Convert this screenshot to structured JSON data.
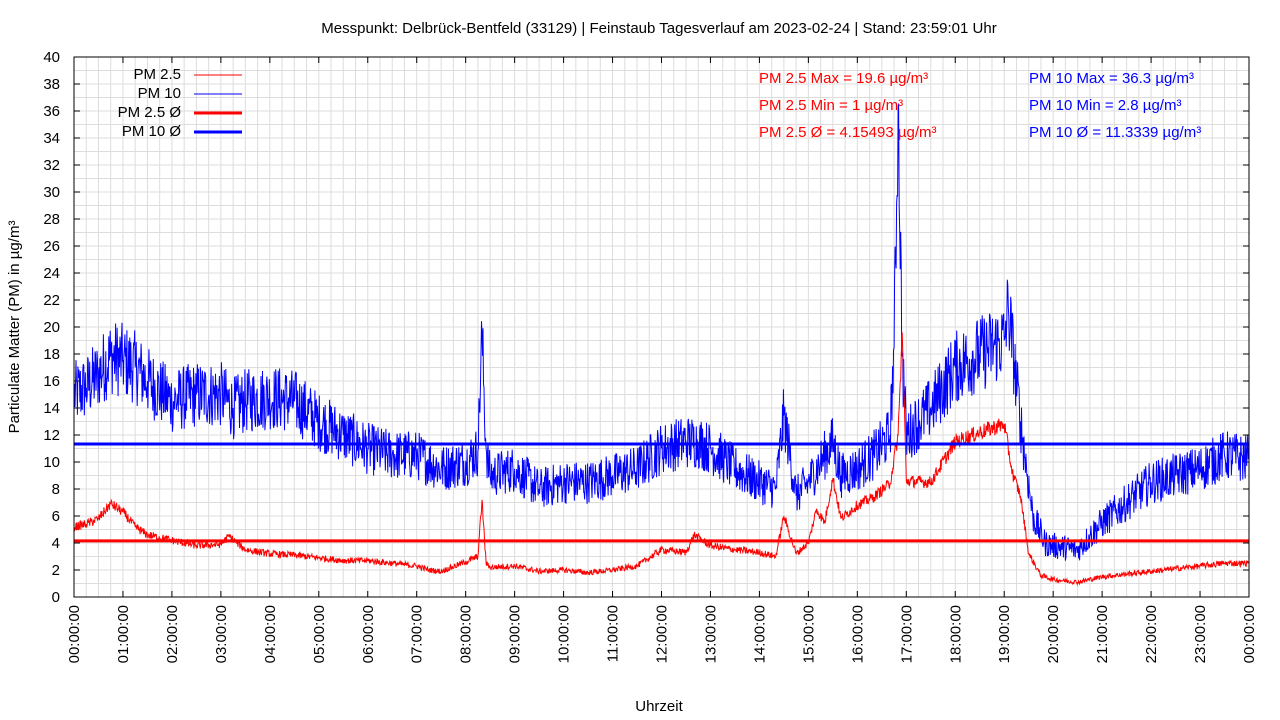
{
  "chart_data": {
    "type": "line",
    "title": "Messpunkt: Delbrück-Bentfeld (33129) | Feinstaub Tagesverlauf am 2023-02-24 | Stand: 23:59:01 Uhr",
    "xlabel": "Uhrzeit",
    "ylabel": "Particulate Matter (PM) in µg/m³",
    "ylim": [
      0,
      40
    ],
    "xlim": [
      "00:00:00",
      "24:00:00"
    ],
    "grid": true,
    "legend_position": "top-left",
    "y_ticks": [
      "0",
      "2",
      "4",
      "6",
      "8",
      "10",
      "12",
      "14",
      "16",
      "18",
      "20",
      "22",
      "24",
      "26",
      "28",
      "30",
      "32",
      "34",
      "36",
      "38",
      "40"
    ],
    "x_ticks": [
      "00:00:00",
      "01:00:00",
      "02:00:00",
      "03:00:00",
      "04:00:00",
      "05:00:00",
      "06:00:00",
      "07:00:00",
      "08:00:00",
      "09:00:00",
      "10:00:00",
      "11:00:00",
      "12:00:00",
      "13:00:00",
      "14:00:00",
      "15:00:00",
      "16:00:00",
      "17:00:00",
      "18:00:00",
      "19:00:00",
      "20:00:00",
      "21:00:00",
      "22:00:00",
      "23:00:00",
      "00:00:00"
    ],
    "series": [
      {
        "name": "PM 2.5",
        "color": "#ff0000",
        "x": [
          "00:00",
          "00:15",
          "00:30",
          "00:45",
          "01:00",
          "01:15",
          "01:30",
          "02:00",
          "02:30",
          "03:00",
          "03:10",
          "03:30",
          "04:00",
          "04:30",
          "05:00",
          "05:30",
          "06:00",
          "06:30",
          "07:00",
          "07:15",
          "07:30",
          "08:00",
          "08:15",
          "08:20",
          "08:25",
          "08:30",
          "09:00",
          "09:30",
          "10:00",
          "10:30",
          "11:00",
          "11:30",
          "12:00",
          "12:30",
          "12:40",
          "13:00",
          "13:30",
          "14:00",
          "14:20",
          "14:30",
          "14:45",
          "15:00",
          "15:10",
          "15:20",
          "15:30",
          "15:40",
          "16:00",
          "16:20",
          "16:40",
          "16:50",
          "16:55",
          "17:00",
          "17:30",
          "18:00",
          "18:30",
          "19:00",
          "19:10",
          "19:20",
          "19:30",
          "19:45",
          "20:00",
          "20:30",
          "21:00",
          "21:30",
          "22:00",
          "22:30",
          "23:00",
          "23:30",
          "23:59"
        ],
        "values": [
          5.2,
          5.4,
          5.8,
          6.9,
          6.3,
          5.2,
          4.6,
          4.2,
          3.8,
          3.9,
          4.5,
          3.5,
          3.2,
          3.1,
          2.9,
          2.7,
          2.7,
          2.5,
          2.3,
          2.0,
          1.9,
          2.6,
          3.0,
          7.2,
          2.5,
          2.2,
          2.3,
          1.9,
          2.0,
          1.8,
          2.0,
          2.3,
          3.5,
          3.3,
          4.6,
          3.8,
          3.5,
          3.3,
          3.0,
          6.0,
          3.2,
          4.0,
          6.5,
          5.5,
          8.8,
          5.8,
          6.8,
          7.4,
          8.4,
          12.0,
          19.6,
          8.6,
          8.5,
          11.5,
          12.2,
          12.8,
          9.2,
          7.5,
          3.2,
          1.6,
          1.3,
          1.1,
          1.5,
          1.7,
          1.9,
          2.1,
          2.3,
          2.5,
          2.5
        ]
      },
      {
        "name": "PM 10",
        "color": "#0000ff",
        "x": [
          "00:00",
          "00:15",
          "00:30",
          "00:45",
          "01:00",
          "01:15",
          "01:30",
          "02:00",
          "02:30",
          "03:00",
          "03:15",
          "03:30",
          "04:00",
          "04:30",
          "05:00",
          "05:30",
          "06:00",
          "06:30",
          "07:00",
          "07:30",
          "08:00",
          "08:15",
          "08:20",
          "08:25",
          "08:30",
          "09:00",
          "09:30",
          "10:00",
          "10:30",
          "11:00",
          "11:30",
          "12:00",
          "12:30",
          "12:45",
          "13:00",
          "13:30",
          "14:00",
          "14:20",
          "14:30",
          "14:45",
          "15:00",
          "15:15",
          "15:30",
          "15:40",
          "16:00",
          "16:20",
          "16:40",
          "16:45",
          "16:50",
          "16:55",
          "17:00",
          "17:30",
          "18:00",
          "18:30",
          "19:00",
          "19:05",
          "19:20",
          "19:35",
          "19:50",
          "20:00",
          "20:30",
          "20:45",
          "21:00",
          "21:30",
          "22:00",
          "22:30",
          "23:00",
          "23:30",
          "23:59"
        ],
        "values": [
          15.0,
          15.5,
          16.5,
          17.8,
          17.5,
          17.0,
          16.0,
          14.5,
          15.0,
          15.0,
          14.0,
          14.5,
          14.8,
          14.5,
          13.0,
          12.0,
          11.0,
          10.5,
          10.5,
          9.5,
          10.0,
          10.8,
          19.5,
          11.0,
          9.0,
          9.5,
          8.0,
          8.5,
          8.5,
          9.0,
          9.5,
          11.0,
          11.5,
          11.5,
          11.0,
          9.5,
          8.5,
          8.0,
          13.5,
          7.5,
          8.5,
          10.0,
          11.5,
          9.0,
          9.5,
          10.5,
          12.0,
          18.5,
          36.3,
          18.0,
          12.0,
          14.0,
          17.0,
          18.0,
          19.0,
          21.5,
          13.0,
          6.0,
          4.0,
          3.8,
          3.5,
          4.5,
          5.5,
          7.0,
          8.5,
          9.0,
          9.5,
          10.5,
          10.2
        ]
      },
      {
        "name": "PM 2.5 Ø",
        "color": "#ff0000",
        "value": 4.15493
      },
      {
        "name": "PM 10 Ø",
        "color": "#0000ff",
        "value": 11.3339
      }
    ],
    "annotations": {
      "pm25": [
        "PM 2.5 Max = 19.6 µg/m³",
        "PM 2.5 Min = 1 µg/m³",
        "PM 2.5 Ø = 4.15493 µg/m³"
      ],
      "pm10": [
        "PM 10 Max = 36.3 µg/m³",
        "PM 10 Min = 2.8 µg/m³",
        "PM 10 Ø = 11.3339 µg/m³"
      ]
    }
  }
}
